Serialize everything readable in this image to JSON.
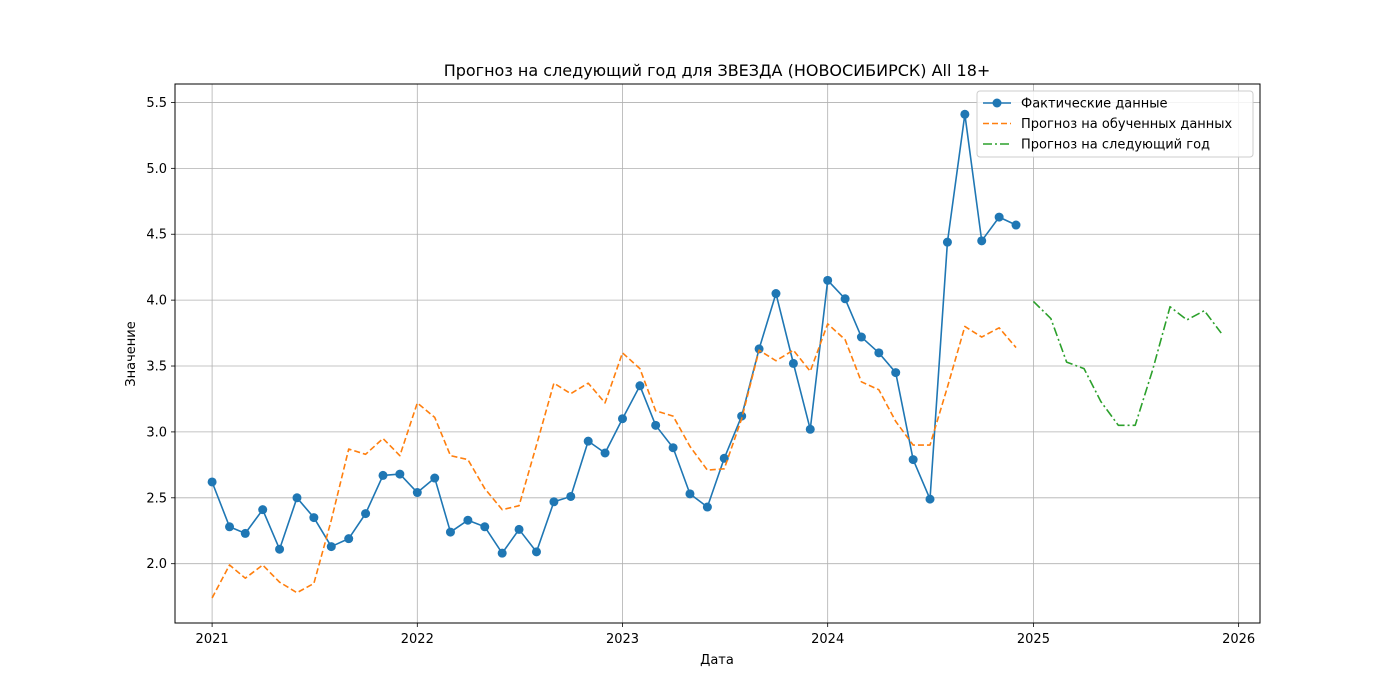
{
  "chart_data": {
    "type": "line",
    "title": "Прогноз на следующий год для ЗВЕЗДА (НОВОСИБИРСК) All 18+",
    "xlabel": "Дата",
    "ylabel": "Значение",
    "xlim": [
      "2020-10-27",
      "2026-02-08"
    ],
    "ylim": [
      1.55,
      5.64
    ],
    "grid": true,
    "legend_position": "top-right",
    "x_ticks": [
      "2021",
      "2022",
      "2023",
      "2024",
      "2025",
      "2026"
    ],
    "y_ticks": [
      "2.0",
      "2.5",
      "3.0",
      "3.5",
      "4.0",
      "4.5",
      "5.0",
      "5.5"
    ],
    "series": [
      {
        "name": "Фактические данные",
        "color": "#1f77b4",
        "style": "solid-markers",
        "x": [
          "2021-01",
          "2021-02",
          "2021-03",
          "2021-04",
          "2021-05",
          "2021-06",
          "2021-07",
          "2021-08",
          "2021-09",
          "2021-10",
          "2021-11",
          "2021-12",
          "2022-01",
          "2022-02",
          "2022-03",
          "2022-04",
          "2022-05",
          "2022-06",
          "2022-07",
          "2022-08",
          "2022-09",
          "2022-10",
          "2022-11",
          "2022-12",
          "2023-01",
          "2023-02",
          "2023-03",
          "2023-04",
          "2023-05",
          "2023-06",
          "2023-07",
          "2023-08",
          "2023-09",
          "2023-10",
          "2023-11",
          "2023-12",
          "2024-01",
          "2024-02",
          "2024-03",
          "2024-04",
          "2024-05",
          "2024-06",
          "2024-07",
          "2024-08",
          "2024-09",
          "2024-10",
          "2024-11",
          "2024-12"
        ],
        "y": [
          2.62,
          2.28,
          2.23,
          2.41,
          2.11,
          2.5,
          2.35,
          2.13,
          2.19,
          2.38,
          2.67,
          2.68,
          2.54,
          2.65,
          2.24,
          2.33,
          2.28,
          2.08,
          2.26,
          2.09,
          2.47,
          2.51,
          2.93,
          2.84,
          3.1,
          3.35,
          3.05,
          2.88,
          2.53,
          2.43,
          2.8,
          3.12,
          3.63,
          4.05,
          3.52,
          3.02,
          4.15,
          4.01,
          3.72,
          3.6,
          3.45,
          2.79,
          2.49,
          4.44,
          5.41,
          4.45,
          4.63,
          4.57
        ]
      },
      {
        "name": "Прогноз на обученных данных",
        "color": "#ff7f0e",
        "style": "dashed",
        "x": [
          "2021-01",
          "2021-02",
          "2021-03",
          "2021-04",
          "2021-05",
          "2021-06",
          "2021-07",
          "2021-08",
          "2021-09",
          "2021-10",
          "2021-11",
          "2021-12",
          "2022-01",
          "2022-02",
          "2022-03",
          "2022-04",
          "2022-05",
          "2022-06",
          "2022-07",
          "2022-08",
          "2022-09",
          "2022-10",
          "2022-11",
          "2022-12",
          "2023-01",
          "2023-02",
          "2023-03",
          "2023-04",
          "2023-05",
          "2023-06",
          "2023-07",
          "2023-08",
          "2023-09",
          "2023-10",
          "2023-11",
          "2023-12",
          "2024-01",
          "2024-02",
          "2024-03",
          "2024-04",
          "2024-05",
          "2024-06",
          "2024-07",
          "2024-08",
          "2024-09",
          "2024-10",
          "2024-11",
          "2024-12"
        ],
        "y": [
          1.74,
          1.99,
          1.89,
          1.99,
          1.86,
          1.78,
          1.85,
          2.33,
          2.87,
          2.83,
          2.95,
          2.82,
          3.22,
          3.11,
          2.82,
          2.79,
          2.57,
          2.41,
          2.44,
          2.9,
          3.37,
          3.29,
          3.37,
          3.22,
          3.6,
          3.48,
          3.16,
          3.12,
          2.89,
          2.71,
          2.72,
          3.1,
          3.62,
          3.54,
          3.62,
          3.46,
          3.82,
          3.7,
          3.38,
          3.32,
          3.08,
          2.9,
          2.9,
          3.34,
          3.8,
          3.72,
          3.79,
          3.64
        ]
      },
      {
        "name": "Прогноз на следующий год",
        "color": "#2ca02c",
        "style": "dashdot",
        "x": [
          "2025-01",
          "2025-02",
          "2025-03",
          "2025-04",
          "2025-05",
          "2025-06",
          "2025-07",
          "2025-08",
          "2025-09",
          "2025-10",
          "2025-11",
          "2025-12"
        ],
        "y": [
          3.99,
          3.86,
          3.53,
          3.48,
          3.23,
          3.05,
          3.05,
          3.47,
          3.95,
          3.85,
          3.92,
          3.75
        ]
      }
    ]
  }
}
